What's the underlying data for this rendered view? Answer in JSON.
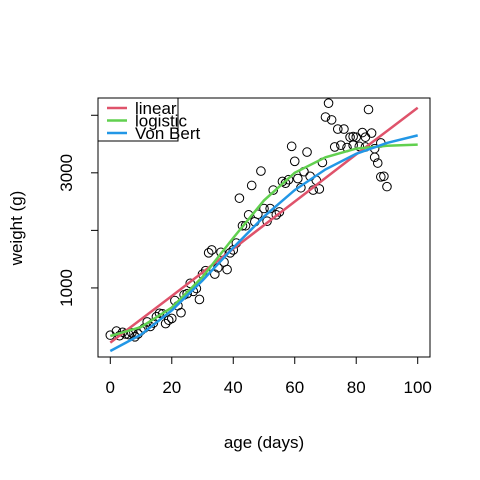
{
  "chart_data": {
    "type": "scatter",
    "xlabel": "age (days)",
    "ylabel": "weight (g)",
    "xlim": [
      -4,
      104
    ],
    "ylim": [
      -200,
      4300
    ],
    "x_ticks": [
      0,
      20,
      40,
      60,
      80,
      100
    ],
    "y_ticks": [
      1000,
      2000,
      3000,
      4000
    ],
    "y_tick_labels": [
      "1000",
      "",
      "3000",
      ""
    ],
    "grid": false,
    "legend_position": "top-left",
    "points": [
      [
        0,
        180
      ],
      [
        2,
        250
      ],
      [
        3,
        170
      ],
      [
        4,
        230
      ],
      [
        5,
        200
      ],
      [
        6,
        190
      ],
      [
        7,
        220
      ],
      [
        8,
        150
      ],
      [
        9,
        200
      ],
      [
        10,
        260
      ],
      [
        11,
        300
      ],
      [
        12,
        410
      ],
      [
        13,
        330
      ],
      [
        14,
        390
      ],
      [
        15,
        500
      ],
      [
        16,
        560
      ],
      [
        17,
        550
      ],
      [
        18,
        380
      ],
      [
        19,
        440
      ],
      [
        20,
        470
      ],
      [
        21,
        780
      ],
      [
        22,
        690
      ],
      [
        23,
        570
      ],
      [
        24,
        880
      ],
      [
        25,
        900
      ],
      [
        26,
        1080
      ],
      [
        27,
        940
      ],
      [
        28,
        990
      ],
      [
        29,
        800
      ],
      [
        30,
        1240
      ],
      [
        31,
        1300
      ],
      [
        32,
        1610
      ],
      [
        33,
        1660
      ],
      [
        34,
        1240
      ],
      [
        35,
        1350
      ],
      [
        36,
        1620
      ],
      [
        37,
        1450
      ],
      [
        38,
        1320
      ],
      [
        39,
        1610
      ],
      [
        40,
        1660
      ],
      [
        41,
        1780
      ],
      [
        42,
        2560
      ],
      [
        43,
        2080
      ],
      [
        44,
        2080
      ],
      [
        45,
        2270
      ],
      [
        46,
        2780
      ],
      [
        47,
        2150
      ],
      [
        48,
        2280
      ],
      [
        49,
        3030
      ],
      [
        50,
        2380
      ],
      [
        51,
        2160
      ],
      [
        52,
        2380
      ],
      [
        53,
        2700
      ],
      [
        54,
        2270
      ],
      [
        55,
        2320
      ],
      [
        56,
        2850
      ],
      [
        57,
        2820
      ],
      [
        58,
        2880
      ],
      [
        59,
        3460
      ],
      [
        60,
        3200
      ],
      [
        61,
        2900
      ],
      [
        62,
        2740
      ],
      [
        63,
        3020
      ],
      [
        64,
        3360
      ],
      [
        65,
        2940
      ],
      [
        66,
        2700
      ],
      [
        67,
        2870
      ],
      [
        68,
        2720
      ],
      [
        69,
        3180
      ],
      [
        70,
        3970
      ],
      [
        71,
        4210
      ],
      [
        72,
        3920
      ],
      [
        73,
        3450
      ],
      [
        74,
        3760
      ],
      [
        75,
        3480
      ],
      [
        76,
        3760
      ],
      [
        77,
        3440
      ],
      [
        78,
        3620
      ],
      [
        79,
        3630
      ],
      [
        80,
        3620
      ],
      [
        81,
        3460
      ],
      [
        82,
        3700
      ],
      [
        83,
        3450
      ],
      [
        84,
        4100
      ],
      [
        85,
        3690
      ],
      [
        86,
        3270
      ],
      [
        87,
        3170
      ],
      [
        88,
        2930
      ],
      [
        89,
        2940
      ],
      [
        90,
        2760
      ],
      [
        79,
        3480
      ],
      [
        83,
        3620
      ],
      [
        86,
        3420
      ],
      [
        88,
        3520
      ]
    ],
    "series": [
      {
        "name": "linear",
        "color": "#DF536B",
        "x": [
          0,
          20,
          40,
          60,
          80,
          100
        ],
        "values": [
          50,
          860,
          1680,
          2500,
          3320,
          4130
        ]
      },
      {
        "name": "logistic",
        "color": "#61D04F",
        "x": [
          0,
          10,
          20,
          30,
          40,
          50,
          60,
          70,
          80,
          90,
          100
        ],
        "values": [
          165,
          320,
          660,
          1190,
          1870,
          2520,
          3000,
          3270,
          3420,
          3470,
          3490
        ]
      },
      {
        "name": "Von Bert",
        "color": "#2297E6",
        "x": [
          0,
          10,
          20,
          30,
          40,
          50,
          60,
          70,
          80,
          90,
          100
        ],
        "values": [
          -95,
          190,
          610,
          1130,
          1700,
          2240,
          2700,
          3060,
          3330,
          3520,
          3650
        ]
      }
    ]
  }
}
